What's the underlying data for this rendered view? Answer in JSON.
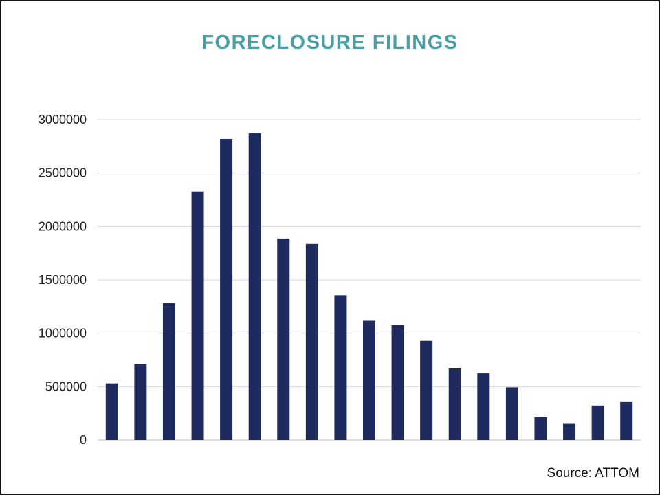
{
  "chart_data": {
    "type": "bar",
    "title": "FORECLOSURE FILINGS",
    "xlabel": "",
    "ylabel": "",
    "source": "Source: ATTOM",
    "values": [
      530000,
      713000,
      1283000,
      2326000,
      2820000,
      2871000,
      1887000,
      1836000,
      1356000,
      1117000,
      1079000,
      929000,
      676000,
      624000,
      493000,
      213000,
      151000,
      323000,
      355000
    ],
    "ylim": [
      0,
      3000000
    ],
    "yticks": [
      0,
      500000,
      1000000,
      1500000,
      2000000,
      2500000,
      3000000
    ],
    "grid": true,
    "legend": "none",
    "bar_color": "#1f2a5e",
    "title_color": "#4a9fa6",
    "grid_color": "#d4d4d4"
  }
}
